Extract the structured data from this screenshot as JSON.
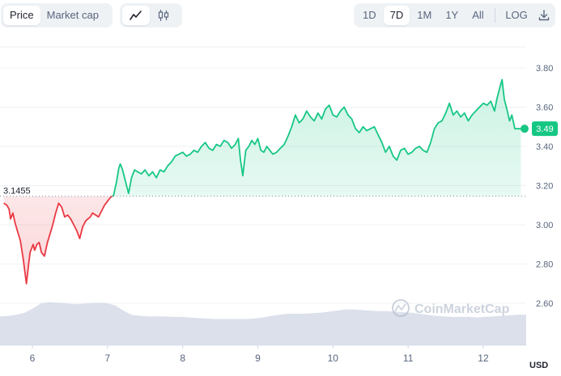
{
  "toolbar": {
    "metric_tabs": [
      {
        "label": "Price",
        "active": true
      },
      {
        "label": "Market cap",
        "active": false
      }
    ],
    "chart_type_icons": [
      {
        "icon": "line-chart-icon",
        "active": true
      },
      {
        "icon": "candlestick-icon",
        "active": false
      }
    ],
    "ranges": [
      {
        "label": "1D",
        "active": false
      },
      {
        "label": "7D",
        "active": true
      },
      {
        "label": "1M",
        "active": false
      },
      {
        "label": "1Y",
        "active": false
      },
      {
        "label": "All",
        "active": false
      }
    ],
    "log_label": "LOG",
    "download_icon": "download-icon"
  },
  "watermark": "CoinMarketCap",
  "reference_price_label": "3.1455",
  "current_price_label": "3.49",
  "currency_label": "USD",
  "colors": {
    "up": "#16c784",
    "down": "#ea3943",
    "volume": "#cfd6e4",
    "grid": "#eff2f5",
    "axis_text": "#58667e"
  },
  "chart_data": {
    "type": "line",
    "ylim": [
      2.5,
      3.9
    ],
    "yticks": [
      2.6,
      2.8,
      3.0,
      3.2,
      3.4,
      3.6,
      3.8
    ],
    "ytick_labels": [
      "2.60",
      "2.80",
      "3.00",
      "3.20",
      "3.40",
      "3.60",
      "3.80"
    ],
    "x_range": [
      5.5,
      12.55
    ],
    "xticks": [
      6,
      7,
      8,
      9,
      10,
      11,
      12
    ],
    "xtick_labels": [
      "6",
      "7",
      "8",
      "9",
      "10",
      "11",
      "12"
    ],
    "reference_value": 3.1455,
    "series": [
      {
        "x": [
          5.62,
          5.66,
          5.69,
          5.71,
          5.74,
          5.77,
          5.8,
          5.84,
          5.88,
          5.92,
          5.95,
          5.97,
          5.99,
          6.01,
          6.03,
          6.06,
          6.09,
          6.12,
          6.16,
          6.2,
          6.24,
          6.27,
          6.31,
          6.35,
          6.39,
          6.43,
          6.47,
          6.51,
          6.55,
          6.59,
          6.63,
          6.67,
          6.71,
          6.74,
          6.77,
          6.8,
          6.84,
          6.88,
          6.92,
          6.96,
          7.0,
          7.04,
          7.08,
          7.12,
          7.15,
          7.17,
          7.2,
          7.24,
          7.28,
          7.32,
          7.36,
          7.4,
          7.45,
          7.5,
          7.55,
          7.6,
          7.65,
          7.7,
          7.75,
          7.8,
          7.85,
          7.9,
          7.95,
          8.0,
          8.05,
          8.1,
          8.15,
          8.2,
          8.25,
          8.3,
          8.35,
          8.4,
          8.45,
          8.5,
          8.55,
          8.6,
          8.65,
          8.7,
          8.74,
          8.77,
          8.8,
          8.84,
          8.88,
          8.92,
          8.96,
          9.0,
          9.04,
          9.08,
          9.12,
          9.16,
          9.2,
          9.25,
          9.3,
          9.35,
          9.4,
          9.45,
          9.5,
          9.55,
          9.6,
          9.65,
          9.7,
          9.75,
          9.8,
          9.85,
          9.9,
          9.95,
          10.0,
          10.05,
          10.1,
          10.15,
          10.2,
          10.25,
          10.3,
          10.35,
          10.4,
          10.45,
          10.5,
          10.55,
          10.6,
          10.65,
          10.7,
          10.75,
          10.8,
          10.85,
          10.9,
          10.95,
          11.0,
          11.05,
          11.1,
          11.15,
          11.2,
          11.25,
          11.3,
          11.35,
          11.4,
          11.45,
          11.5,
          11.55,
          11.6,
          11.65,
          11.7,
          11.75,
          11.8,
          11.85,
          11.9,
          11.95,
          12.0,
          12.05,
          12.1,
          12.15,
          12.18,
          12.22,
          12.25,
          12.28,
          12.32,
          12.35,
          12.38,
          12.42,
          12.45,
          12.5
        ],
        "values": [
          3.11,
          3.1,
          3.08,
          3.03,
          3.06,
          3.01,
          2.97,
          2.92,
          2.82,
          2.7,
          2.8,
          2.86,
          2.88,
          2.9,
          2.87,
          2.9,
          2.91,
          2.86,
          2.84,
          2.91,
          2.96,
          3.0,
          3.06,
          3.11,
          3.09,
          3.04,
          3.05,
          3.03,
          3.0,
          2.97,
          2.93,
          2.99,
          3.02,
          3.03,
          3.04,
          3.06,
          3.05,
          3.04,
          3.07,
          3.1,
          3.12,
          3.14,
          3.15,
          3.22,
          3.29,
          3.31,
          3.28,
          3.22,
          3.16,
          3.24,
          3.28,
          3.27,
          3.26,
          3.28,
          3.25,
          3.27,
          3.24,
          3.28,
          3.27,
          3.3,
          3.32,
          3.35,
          3.36,
          3.37,
          3.35,
          3.36,
          3.38,
          3.37,
          3.4,
          3.42,
          3.39,
          3.38,
          3.41,
          3.4,
          3.43,
          3.42,
          3.39,
          3.41,
          3.44,
          3.33,
          3.25,
          3.38,
          3.4,
          3.43,
          3.41,
          3.44,
          3.38,
          3.37,
          3.4,
          3.38,
          3.36,
          3.37,
          3.39,
          3.41,
          3.45,
          3.5,
          3.56,
          3.52,
          3.54,
          3.58,
          3.55,
          3.53,
          3.57,
          3.54,
          3.59,
          3.61,
          3.56,
          3.55,
          3.58,
          3.6,
          3.56,
          3.54,
          3.49,
          3.47,
          3.5,
          3.48,
          3.49,
          3.5,
          3.46,
          3.42,
          3.37,
          3.4,
          3.35,
          3.33,
          3.38,
          3.39,
          3.36,
          3.37,
          3.39,
          3.4,
          3.38,
          3.37,
          3.42,
          3.49,
          3.52,
          3.53,
          3.57,
          3.62,
          3.56,
          3.58,
          3.55,
          3.57,
          3.53,
          3.56,
          3.58,
          3.6,
          3.62,
          3.61,
          3.63,
          3.58,
          3.64,
          3.7,
          3.74,
          3.64,
          3.58,
          3.53,
          3.56,
          3.49,
          3.49,
          3.49
        ]
      }
    ],
    "volume_relative": [
      0.55,
      0.56,
      0.58,
      0.62,
      0.7,
      0.8,
      0.82,
      0.81,
      0.8,
      0.78,
      0.79,
      0.8,
      0.81,
      0.8,
      0.76,
      0.66,
      0.58,
      0.56,
      0.55,
      0.55,
      0.55,
      0.54,
      0.54,
      0.53,
      0.52,
      0.51,
      0.5,
      0.5,
      0.5,
      0.5,
      0.5,
      0.51,
      0.53,
      0.56,
      0.58,
      0.6,
      0.6,
      0.6,
      0.61,
      0.62,
      0.64,
      0.66,
      0.68,
      0.68,
      0.67,
      0.66,
      0.65,
      0.65,
      0.64,
      0.63,
      0.62,
      0.6,
      0.58,
      0.56,
      0.55,
      0.54,
      0.54,
      0.54,
      0.53,
      0.54,
      0.55,
      0.56,
      0.57,
      0.58,
      0.58
    ]
  }
}
